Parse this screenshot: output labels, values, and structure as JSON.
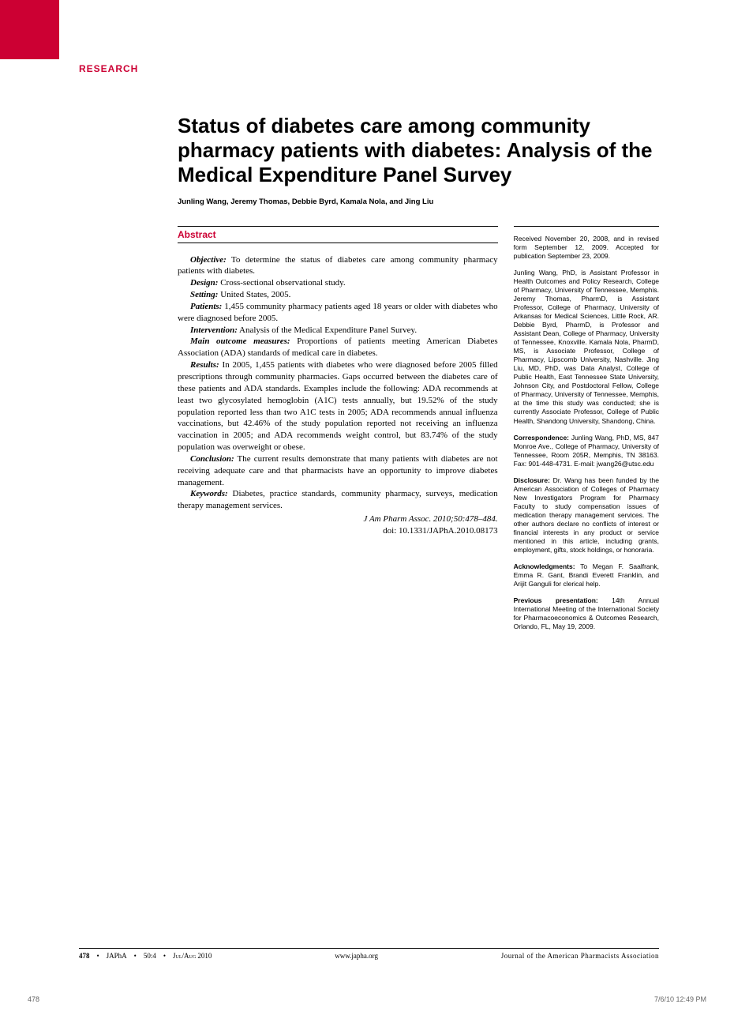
{
  "section_label": "RESEARCH",
  "title": "Status of diabetes care among community pharmacy patients with diabetes: Analysis of the Medical Expenditure Panel Survey",
  "authors": "Junling Wang, Jeremy Thomas, Debbie Byrd, Kamala Nola, and Jing Liu",
  "abstract_header": "Abstract",
  "abstract": {
    "objective": {
      "label": "Objective:",
      "text": " To determine the status of diabetes care among community pharmacy patients with diabetes."
    },
    "design": {
      "label": "Design:",
      "text": " Cross-sectional observational study."
    },
    "setting": {
      "label": "Setting:",
      "text": " United States, 2005."
    },
    "patients": {
      "label": "Patients:",
      "text": " 1,455 community pharmacy patients aged 18 years or older with diabetes who were diagnosed before 2005."
    },
    "intervention": {
      "label": "Intervention:",
      "text": " Analysis of the Medical Expenditure Panel Survey."
    },
    "measures": {
      "label": "Main outcome measures:",
      "text": " Proportions of patients meeting American Diabetes Association (ADA) standards of medical care in diabetes."
    },
    "results": {
      "label": "Results:",
      "text": " In 2005, 1,455 patients with diabetes who were diagnosed before 2005 filled prescriptions through community pharmacies. Gaps occurred between the diabetes care of these patients and ADA standards. Examples include the following: ADA recommends at least two glycosylated hemoglobin (A1C) tests annually, but 19.52% of the study population reported less than two A1C tests in 2005; ADA recommends annual influenza vaccinations, but 42.46% of the study population reported not receiving an influenza vaccination in 2005; and ADA recommends weight control, but 83.74% of the study population was overweight or obese."
    },
    "conclusion": {
      "label": "Conclusion:",
      "text": " The current results demonstrate that many patients with diabetes are not receiving adequate care and that pharmacists have an opportunity to improve diabetes management."
    },
    "keywords": {
      "label": "Keywords:",
      "text": " Diabetes, practice standards, community pharmacy, surveys, medication therapy management services."
    }
  },
  "citation": "J Am Pharm Assoc. 2010;50:478–484.",
  "doi": "doi: 10.1331/JAPhA.2010.08173",
  "sidebar": {
    "received": "Received November 20, 2008, and in revised form September 12, 2009. Accepted for publication September 23, 2009.",
    "bios": "Junling Wang, PhD, is Assistant Professor in Health Outcomes and Policy Research, College of Pharmacy, University of Tennessee, Memphis. Jeremy Thomas, PharmD, is Assistant Professor, College of Pharmacy, University of Arkansas for Medical Sciences, Little Rock, AR. Debbie Byrd, PharmD, is Professor and Assistant Dean, College of Pharmacy, University of Tennessee, Knoxville. Kamala Nola, PharmD, MS, is Associate Professor, College of Pharmacy, Lipscomb University, Nashville. Jing Liu, MD, PhD, was Data Analyst, College of Public Health, East Tennessee State University, Johnson City, and Postdoctoral Fellow, College of Pharmacy, University of Tennessee, Memphis, at the time this study was conducted; she is currently Associate Professor, College of Public Health, Shandong University, Shandong, China.",
    "correspondence_label": "Correspondence:",
    "correspondence": " Junling Wang, PhD, MS, 847 Monroe Ave., College of Pharmacy, University of Tennessee, Room 205R, Memphis, TN 38163. Fax: 901-448-4731. E-mail: jwang26@utsc.edu",
    "disclosure_label": "Disclosure:",
    "disclosure": " Dr. Wang has been funded by the American Association of Colleges of Pharmacy New Investigators Program for Pharmacy Faculty to study compensation issues of medication therapy management services. The other authors declare no conflicts of interest or financial interests in any product or service mentioned in this article, including grants, employment, gifts, stock holdings, or honoraria.",
    "acknowledgments_label": "Acknowledgments:",
    "acknowledgments": " To Megan F. Saalfrank, Emma R. Gant, Brandi Everett Franklin, and Arijit Ganguli for clerical help.",
    "previous_label": "Previous presentation:",
    "previous": " 14th Annual International Meeting of the International Society for Pharmacoeconomics & Outcomes Research, Orlando, FL, May 19, 2009."
  },
  "footer": {
    "page": "478",
    "journal_abbr": "JAPhA",
    "volume": "50:4",
    "date": "Jul/Aug 2010",
    "url": "www.japha.org",
    "journal_full": "Journal of the American Pharmacists Association"
  },
  "page_bottom": {
    "page_num": "478",
    "timestamp": "7/6/10   12:49 PM"
  },
  "colors": {
    "accent": "#cc0033",
    "text": "#000000",
    "bg": "#ffffff"
  }
}
